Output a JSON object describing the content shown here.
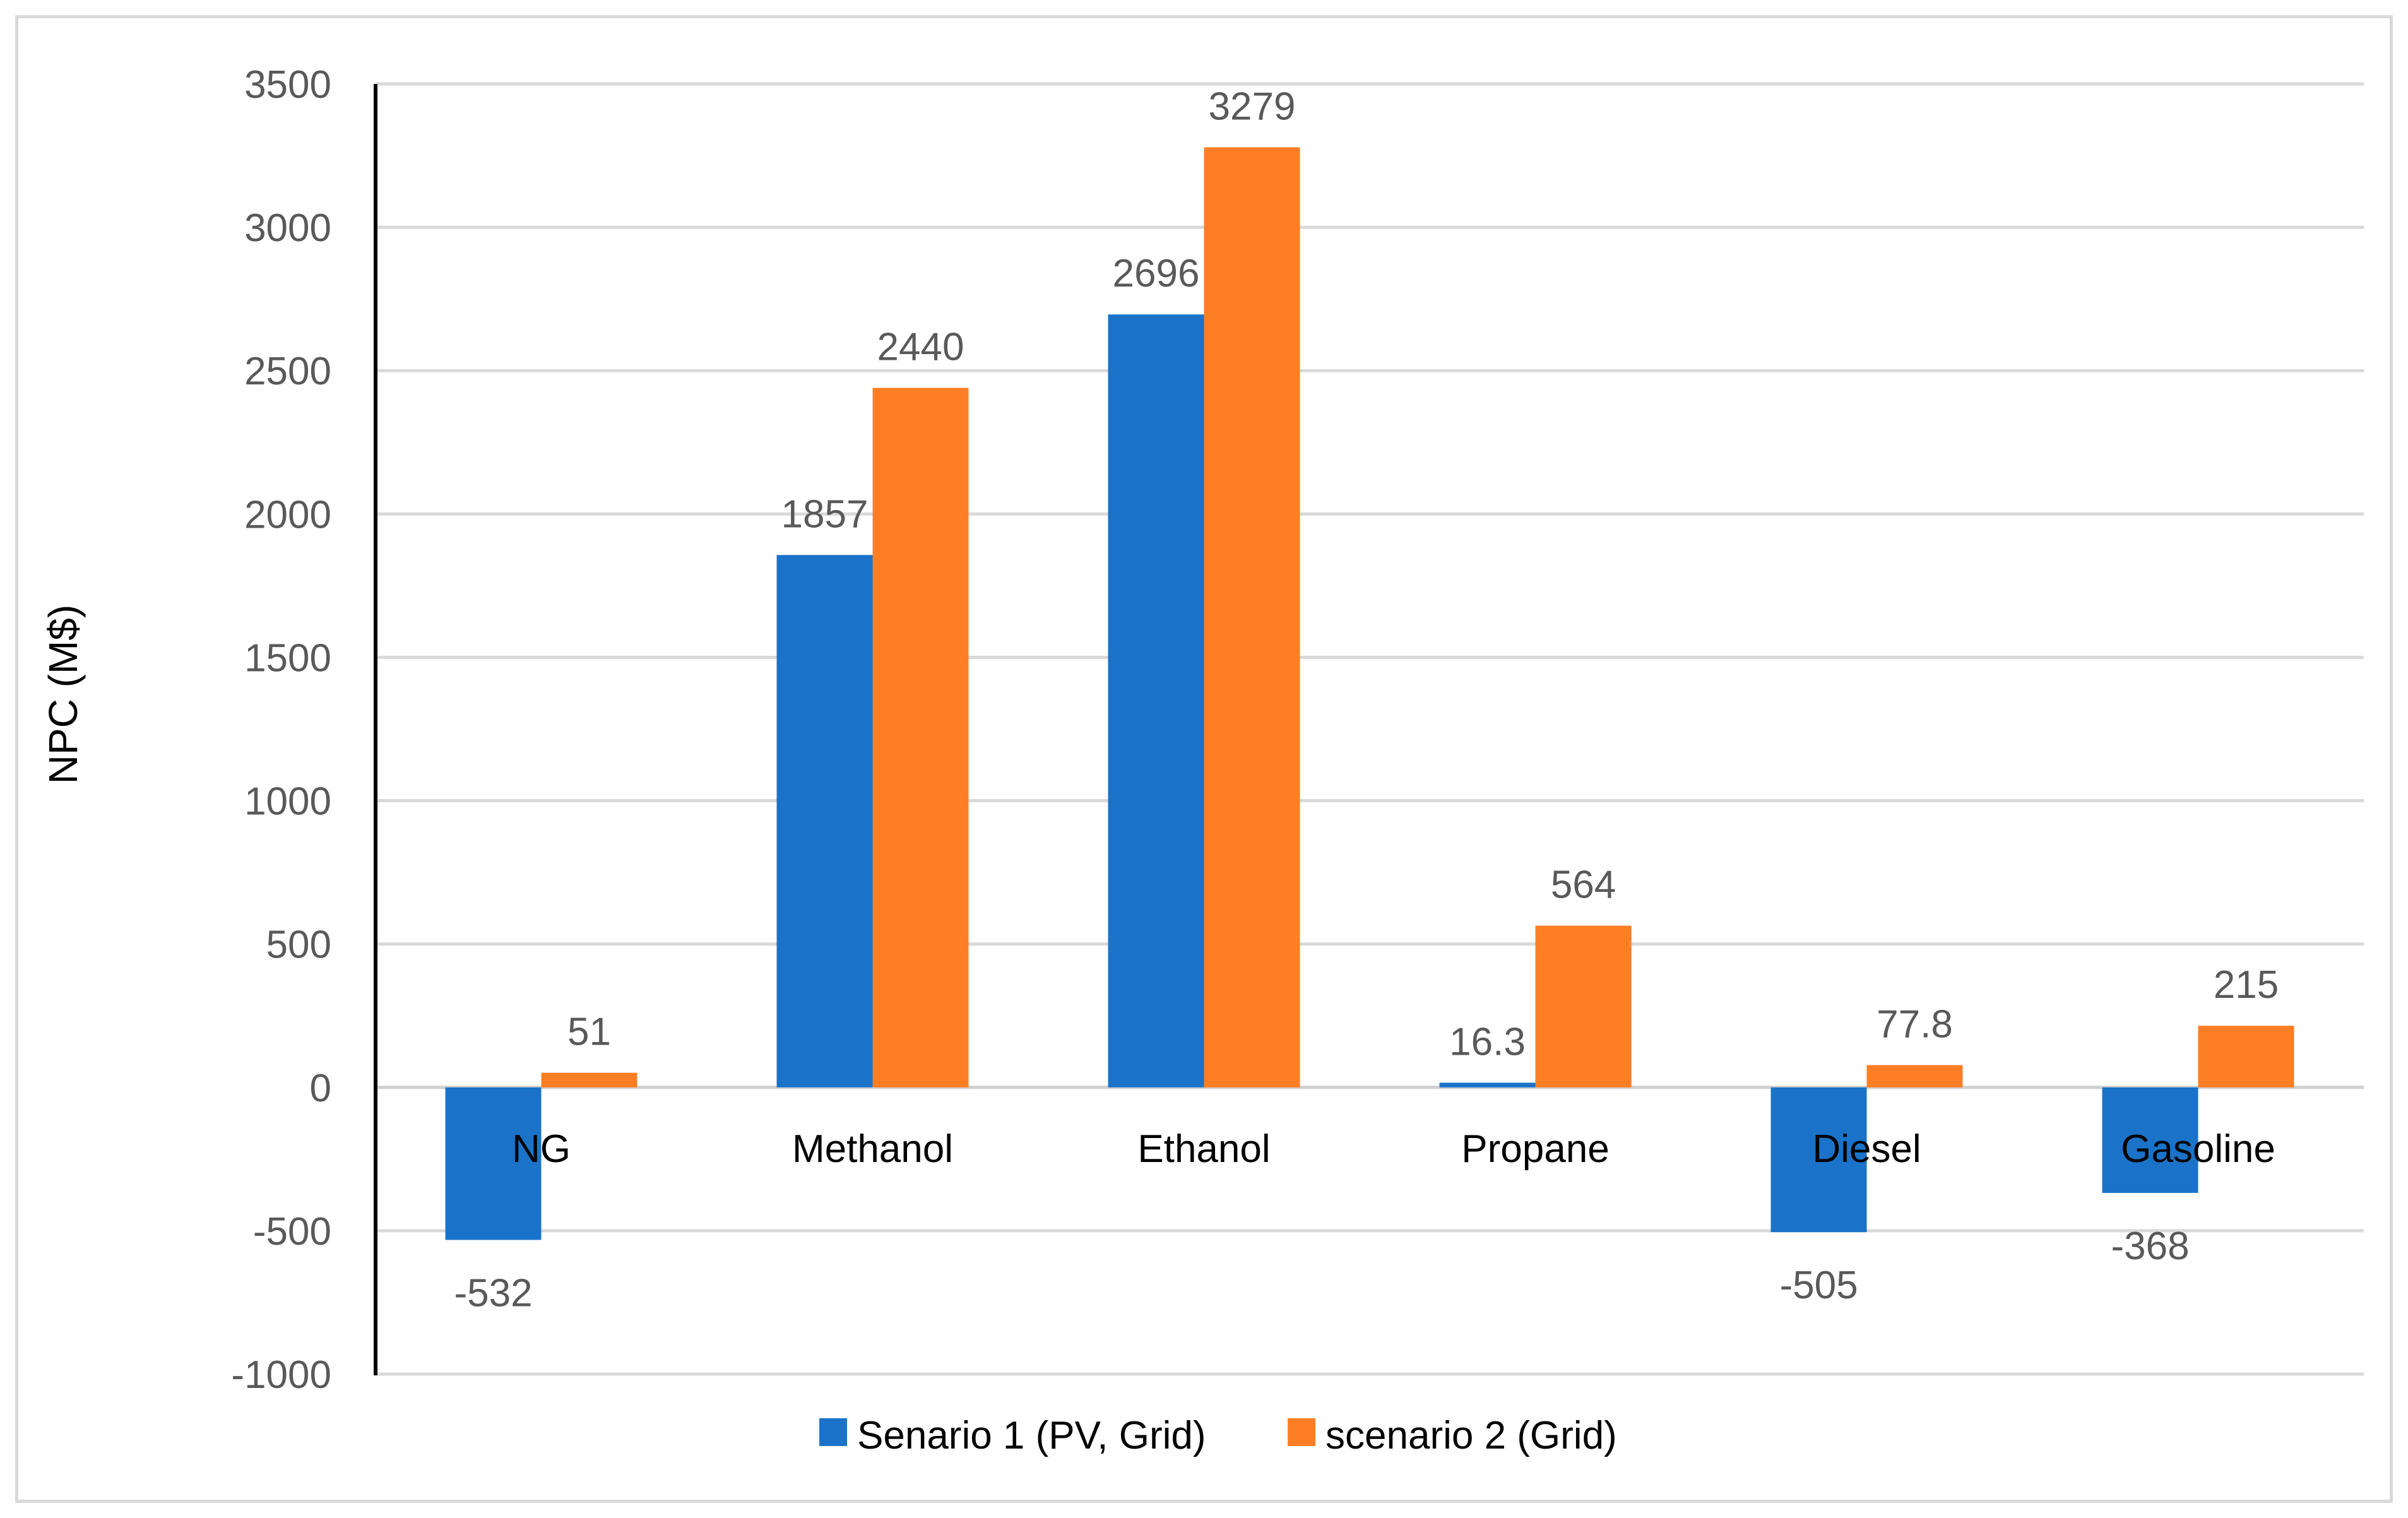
{
  "chart_data": {
    "type": "bar",
    "title": "",
    "xlabel": "",
    "ylabel": "NPC (M$)",
    "ylim": [
      -1000,
      3500
    ],
    "ytick_step": 500,
    "yticks": [
      "-1000",
      "-500",
      "0",
      "500",
      "1000",
      "1500",
      "2000",
      "2500",
      "3000",
      "3500"
    ],
    "grid": true,
    "legend_position": "bottom",
    "categories": [
      "NG",
      "Methanol",
      "Ethanol",
      "Propane",
      "Diesel",
      "Gasoline"
    ],
    "series": [
      {
        "name": "Senario 1 (PV, Grid)",
        "color": "#1a73c9",
        "values": [
          -532,
          1857,
          2696,
          16.3,
          -505,
          -368
        ],
        "labels": [
          "-532",
          "1857",
          "2696",
          "16.3",
          "-505",
          "-368"
        ]
      },
      {
        "name": "scenario 2 (Grid)",
        "color": "#fd7e24",
        "values": [
          51,
          2440,
          3279,
          564,
          77.8,
          215
        ],
        "labels": [
          "51",
          "2440",
          "3279",
          "564",
          "77.8",
          "215"
        ]
      }
    ]
  }
}
